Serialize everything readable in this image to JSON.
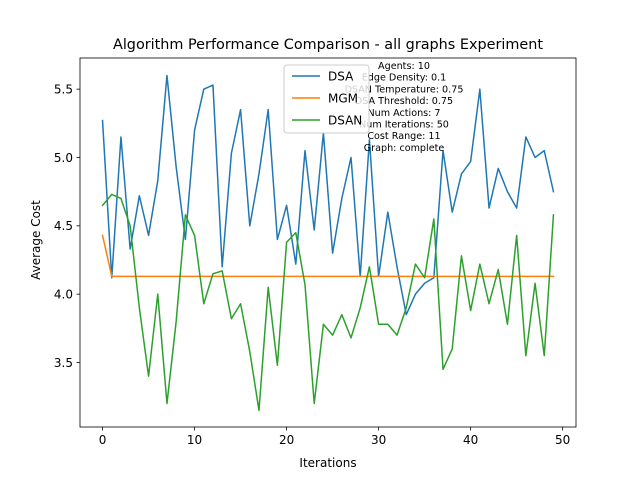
{
  "chart_data": {
    "type": "line",
    "title": "Algorithm Performance Comparison - all graphs Experiment",
    "xlabel": "Iterations",
    "ylabel": "Average Cost",
    "xlim": [
      -2.45,
      51.45
    ],
    "ylim": [
      3.028,
      5.728
    ],
    "xticks": [
      0,
      10,
      20,
      30,
      40,
      50
    ],
    "yticks": [
      3.5,
      4.0,
      4.5,
      5.0,
      5.5
    ],
    "xtick_labels": [
      "0",
      "10",
      "20",
      "30",
      "40",
      "50"
    ],
    "ytick_labels": [
      "3.5",
      "4.0",
      "4.5",
      "5.0",
      "5.5"
    ],
    "grid": false,
    "legend_position": "top-center",
    "x": [
      0,
      1,
      2,
      3,
      4,
      5,
      6,
      7,
      8,
      9,
      10,
      11,
      12,
      13,
      14,
      15,
      16,
      17,
      18,
      19,
      20,
      21,
      22,
      23,
      24,
      25,
      26,
      27,
      28,
      29,
      30,
      31,
      32,
      33,
      34,
      35,
      36,
      37,
      38,
      39,
      40,
      41,
      42,
      43,
      44,
      45,
      46,
      47,
      48,
      49
    ],
    "series": [
      {
        "name": "DSA",
        "color": "#1f77b4",
        "values": [
          5.27,
          4.12,
          5.15,
          4.33,
          4.72,
          4.43,
          4.83,
          5.6,
          4.93,
          4.4,
          5.2,
          5.5,
          5.53,
          4.2,
          5.03,
          5.35,
          4.5,
          4.88,
          5.35,
          4.4,
          4.65,
          4.22,
          5.05,
          4.47,
          5.18,
          4.3,
          4.7,
          5.0,
          4.13,
          5.13,
          4.13,
          4.6,
          4.2,
          3.85,
          4.0,
          4.08,
          4.12,
          5.05,
          4.6,
          4.88,
          4.97,
          5.5,
          4.63,
          4.92,
          4.75,
          4.63,
          5.15,
          5.0,
          5.05,
          4.75
        ]
      },
      {
        "name": "MGM",
        "color": "#ff7f0e",
        "values": [
          4.43,
          4.13,
          4.13,
          4.13,
          4.13,
          4.13,
          4.13,
          4.13,
          4.13,
          4.13,
          4.13,
          4.13,
          4.13,
          4.13,
          4.13,
          4.13,
          4.13,
          4.13,
          4.13,
          4.13,
          4.13,
          4.13,
          4.13,
          4.13,
          4.13,
          4.13,
          4.13,
          4.13,
          4.13,
          4.13,
          4.13,
          4.13,
          4.13,
          4.13,
          4.13,
          4.13,
          4.13,
          4.13,
          4.13,
          4.13,
          4.13,
          4.13,
          4.13,
          4.13,
          4.13,
          4.13,
          4.13,
          4.13,
          4.13,
          4.13
        ]
      },
      {
        "name": "DSAN",
        "color": "#2ca02c",
        "values": [
          4.65,
          4.73,
          4.7,
          4.5,
          3.9,
          3.4,
          4.0,
          3.2,
          3.8,
          4.58,
          4.43,
          3.93,
          4.15,
          4.17,
          3.82,
          3.93,
          3.58,
          3.15,
          4.05,
          3.48,
          4.38,
          4.45,
          4.07,
          3.2,
          3.78,
          3.7,
          3.85,
          3.68,
          3.9,
          4.2,
          3.78,
          3.78,
          3.7,
          3.9,
          4.22,
          4.12,
          4.55,
          3.45,
          3.6,
          4.28,
          3.88,
          4.22,
          3.93,
          4.18,
          3.78,
          4.43,
          3.55,
          4.08,
          3.55,
          4.58
        ]
      }
    ],
    "annotation_lines": [
      "Agents: 10",
      "Edge Density: 0.1",
      "DSAN Temperature: 0.75",
      "DSA Threshold: 0.75",
      "Num Actions: 7",
      "Num Iterations: 50",
      "Cost Range: 11",
      "Graph: complete"
    ]
  }
}
